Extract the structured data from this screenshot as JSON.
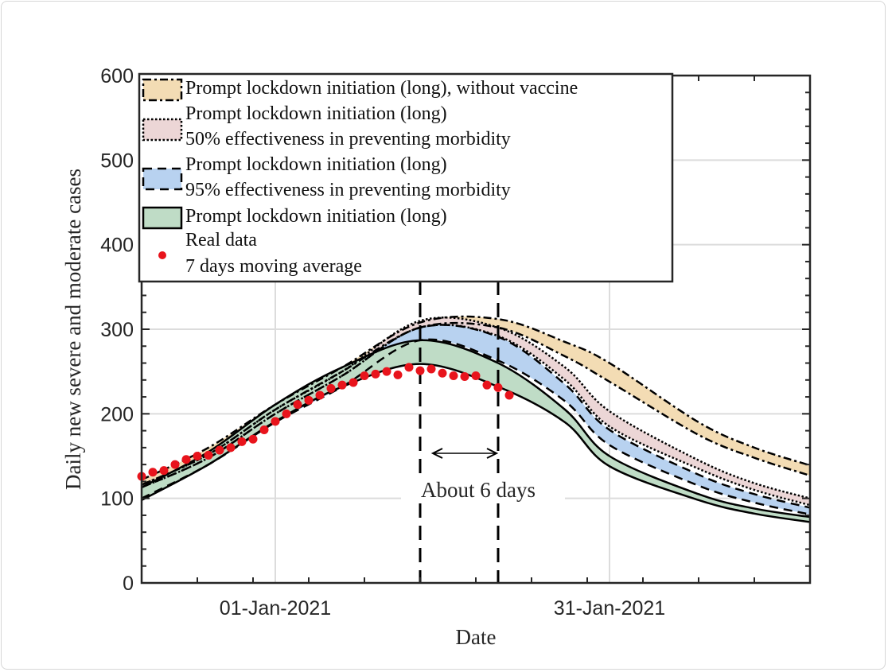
{
  "chart_data": {
    "type": "area",
    "xlabel": "Date",
    "ylabel": "Daily new severe and moderate cases",
    "xlim": [
      "2020-12-20",
      "2021-02-18"
    ],
    "ylim": [
      0,
      600
    ],
    "yticks": [
      0,
      100,
      200,
      300,
      400,
      500,
      600
    ],
    "xticks": [
      {
        "date": "2021-01-01",
        "label": "01-Jan-2021"
      },
      {
        "date": "2021-01-31",
        "label": "31-Jan-2021"
      }
    ],
    "grid": true,
    "legend_position": "top-left",
    "x": [
      "2020-12-20",
      "2020-12-26",
      "2021-01-01",
      "2021-01-07",
      "2021-01-14",
      "2021-01-21",
      "2021-01-27",
      "2021-01-31",
      "2021-02-08",
      "2021-02-13",
      "2021-02-18"
    ],
    "bands": [
      {
        "name": "Prompt lockdown initiation (long), without vaccine",
        "name2": "",
        "style": "dashdot",
        "color": "#f3dcb4",
        "upper": [
          122,
          160,
          211,
          255,
          308,
          312,
          285,
          260,
          190,
          160,
          139
        ],
        "lower": [
          116,
          152,
          205,
          250,
          302,
          302,
          268,
          238,
          175,
          148,
          127
        ]
      },
      {
        "name": "Prompt lockdown initiation (long)",
        "name2": "50% effectiveness in preventing morbidity",
        "style": "dotted",
        "color": "#ecd6d6",
        "upper": [
          116,
          152,
          205,
          250,
          310,
          302,
          255,
          203,
          145,
          118,
          100
        ],
        "lower": [
          113,
          148,
          200,
          245,
          302,
          292,
          240,
          185,
          135,
          110,
          92
        ]
      },
      {
        "name": "Prompt lockdown initiation (long)",
        "name2": "95% effectiveness in preventing morbidity",
        "style": "dashed",
        "color": "#b8d2f0",
        "upper": [
          113,
          148,
          200,
          245,
          302,
          291,
          235,
          181,
          128,
          105,
          89
        ],
        "lower": [
          100,
          140,
          190,
          232,
          287,
          263,
          215,
          163,
          115,
          95,
          81
        ]
      },
      {
        "name": "Prompt lockdown initiation (long)",
        "name2": "",
        "style": "solid",
        "color": "#bfdcc6",
        "upper": [
          113,
          155,
          211,
          255,
          287,
          260,
          205,
          150,
          105,
          88,
          78
        ],
        "lower": [
          98,
          140,
          191,
          232,
          259,
          232,
          190,
          138,
          98,
          82,
          72
        ]
      }
    ],
    "points": {
      "name": "Real data",
      "name2": "7 days moving average",
      "color": "#e8141c",
      "start": "2020-12-20",
      "values": [
        126,
        131,
        133,
        140,
        146,
        150,
        151,
        157,
        160,
        167,
        170,
        181,
        191,
        200,
        211,
        216,
        222,
        230,
        234,
        237,
        245,
        247,
        250,
        246,
        255,
        251,
        253,
        248,
        245,
        244,
        245,
        234,
        231,
        222
      ]
    },
    "vlines": [
      "2021-01-14",
      "2021-01-21"
    ],
    "annotation": "About 6 days"
  }
}
